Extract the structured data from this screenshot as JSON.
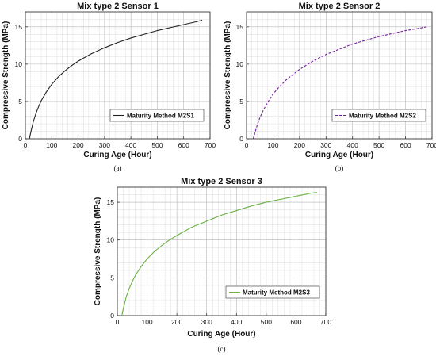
{
  "chart_data": [
    {
      "type": "line",
      "title": "Mix type 2 Sensor 1",
      "xlabel": "Curing Age (Hour)",
      "ylabel": "Compressive Strength (MPa)",
      "xlim": [
        0,
        700
      ],
      "ylim": [
        0,
        17
      ],
      "xticks": [
        0,
        100,
        200,
        300,
        400,
        500,
        600,
        700
      ],
      "yticks": [
        0,
        5,
        10,
        15
      ],
      "grid": true,
      "legend": "lower-right",
      "caption": "(a)",
      "series": [
        {
          "name": "Maturity Method M2S1",
          "color": "#222222",
          "dash": "solid",
          "x": [
            15,
            20,
            30,
            40,
            50,
            60,
            80,
            100,
            125,
            150,
            175,
            200,
            250,
            300,
            350,
            400,
            450,
            500,
            550,
            600,
            650,
            670
          ],
          "y": [
            0,
            0.8,
            2.3,
            3.4,
            4.3,
            5.1,
            6.3,
            7.3,
            8.3,
            9.1,
            9.8,
            10.4,
            11.4,
            12.2,
            12.9,
            13.5,
            14.0,
            14.5,
            14.9,
            15.3,
            15.7,
            15.9
          ]
        }
      ]
    },
    {
      "type": "line",
      "title": "Mix type 2 Sensor 2",
      "xlabel": "Curing Age (Hour)",
      "ylabel": "Compressive Strength (MPa)",
      "xlim": [
        0,
        700
      ],
      "ylim": [
        0,
        17
      ],
      "xticks": [
        0,
        100,
        200,
        300,
        400,
        500,
        600,
        700
      ],
      "yticks": [
        0,
        5,
        10,
        15
      ],
      "grid": true,
      "legend": "lower-right",
      "caption": "(b)",
      "series": [
        {
          "name": "Maturity Method M2S2",
          "color": "#7a1aa8",
          "dash": "dashed",
          "x": [
            25,
            30,
            40,
            50,
            60,
            80,
            100,
            125,
            150,
            175,
            200,
            250,
            300,
            350,
            400,
            450,
            500,
            550,
            600,
            650,
            680
          ],
          "y": [
            0,
            0.6,
            1.8,
            2.8,
            3.6,
            4.9,
            6.0,
            7.0,
            7.9,
            8.6,
            9.3,
            10.4,
            11.3,
            12.0,
            12.7,
            13.2,
            13.7,
            14.1,
            14.5,
            14.8,
            15.0
          ]
        }
      ]
    },
    {
      "type": "line",
      "title": "Mix type 2 Sensor 3",
      "xlabel": "Curing Age (Hour)",
      "ylabel": "Compressive Strength (MPa)",
      "xlim": [
        0,
        700
      ],
      "ylim": [
        0,
        17
      ],
      "xticks": [
        0,
        100,
        200,
        300,
        400,
        500,
        600,
        700
      ],
      "yticks": [
        0,
        5,
        10,
        15
      ],
      "grid": true,
      "legend": "lower-right",
      "caption": "(c)",
      "series": [
        {
          "name": "Maturity Method M2S3",
          "color": "#6ab042",
          "dash": "solid",
          "x": [
            15,
            20,
            30,
            40,
            50,
            60,
            80,
            100,
            125,
            150,
            175,
            200,
            250,
            300,
            350,
            400,
            450,
            500,
            550,
            600,
            650,
            670
          ],
          "y": [
            0,
            0.9,
            2.5,
            3.6,
            4.5,
            5.3,
            6.5,
            7.5,
            8.5,
            9.3,
            10.0,
            10.6,
            11.7,
            12.5,
            13.3,
            13.9,
            14.5,
            15.0,
            15.4,
            15.8,
            16.2,
            16.3
          ]
        }
      ]
    }
  ]
}
